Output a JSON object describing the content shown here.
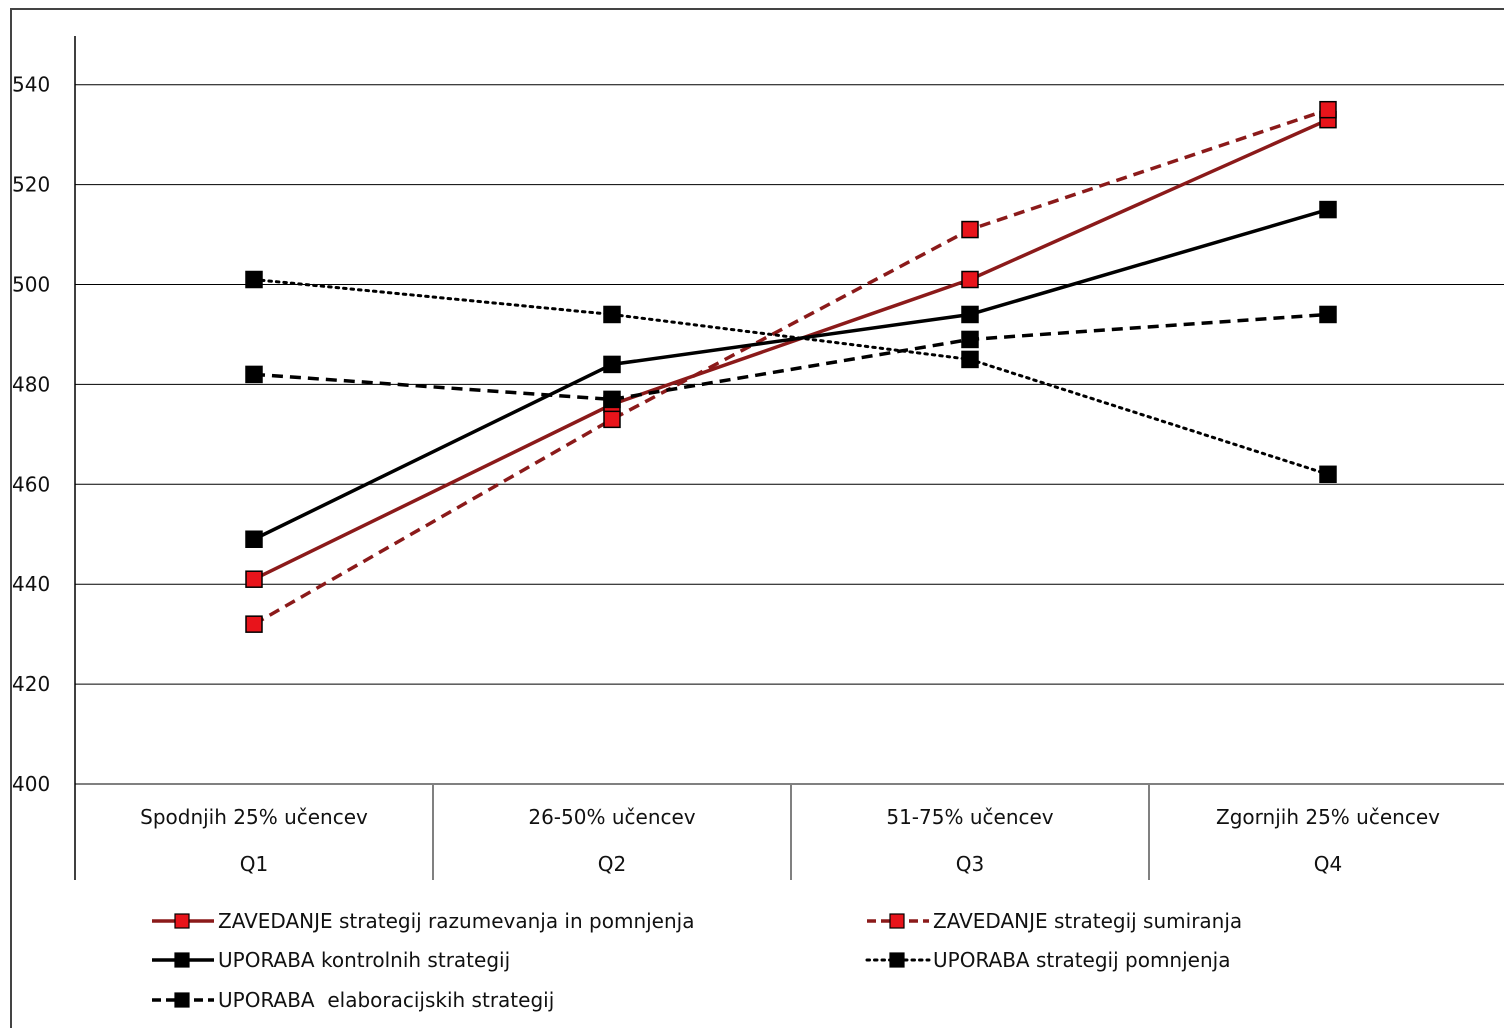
{
  "chart_data": {
    "type": "line",
    "title": "",
    "xlabel": "",
    "ylabel": "",
    "ylim": [
      400,
      550
    ],
    "yticks": [
      400,
      420,
      440,
      460,
      480,
      500,
      520,
      540
    ],
    "grid": true,
    "legend_position": "bottom",
    "categories": [
      {
        "label": "Spodnjih 25% učencev",
        "group": "Q1"
      },
      {
        "label": "26-50% učencev",
        "group": "Q2"
      },
      {
        "label": "51-75% učencev",
        "group": "Q3"
      },
      {
        "label": "Zgornjih 25% učencev",
        "group": "Q4"
      }
    ],
    "series": [
      {
        "name": "ZAVEDANJE strategij razumevanja in pomnjenja",
        "values": [
          441,
          476,
          501,
          533
        ],
        "color": "#8b1a1a",
        "marker_color": "#e8141b",
        "dash": "solid"
      },
      {
        "name": "ZAVEDANJE strategij sumiranja",
        "values": [
          432,
          473,
          511,
          535
        ],
        "color": "#8b1a1a",
        "marker_color": "#e8141b",
        "dash": "dashed"
      },
      {
        "name": "UPORABA kontrolnih strategij",
        "values": [
          449,
          484,
          494,
          515
        ],
        "color": "#000000",
        "marker_color": "#000000",
        "dash": "solid"
      },
      {
        "name": "UPORABA strategij pomnjenja",
        "values": [
          501,
          494,
          485,
          462
        ],
        "color": "#000000",
        "marker_color": "#000000",
        "dash": "dotted"
      },
      {
        "name": "UPORABA  elaboracijskih strategij",
        "values": [
          482,
          477,
          489,
          494
        ],
        "color": "#000000",
        "marker_color": "#000000",
        "dash": "dashed"
      }
    ]
  }
}
